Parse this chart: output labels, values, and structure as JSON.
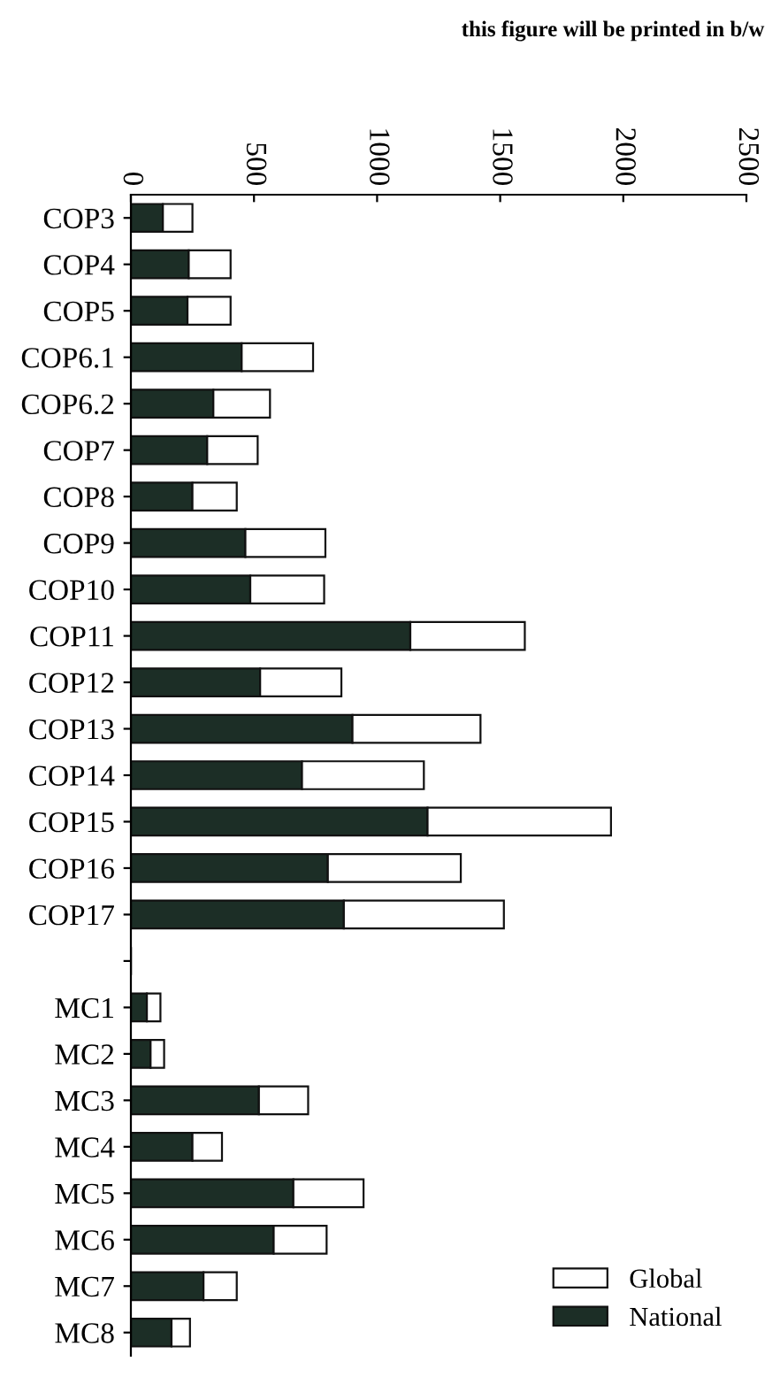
{
  "chart_data": {
    "type": "bar",
    "orientation": "horizontal",
    "stacked": true,
    "categories": [
      "COP3",
      "COP4",
      "COP5",
      "COP6.1",
      "COP6.2",
      "COP7",
      "COP8",
      "COP9",
      "COP10",
      "COP11",
      "COP12",
      "COP13",
      "COP14",
      "COP15",
      "COP16",
      "COP17",
      null,
      "MC1",
      "MC2",
      "MC3",
      "MC4",
      "MC5",
      "MC6",
      "MC7",
      "MC8"
    ],
    "series": [
      {
        "name": "National",
        "color": "#1c2e26",
        "values": [
          130,
          235,
          230,
          450,
          335,
          310,
          250,
          465,
          485,
          1135,
          525,
          900,
          695,
          1205,
          800,
          865,
          null,
          65,
          80,
          520,
          250,
          660,
          580,
          295,
          165
        ]
      },
      {
        "name": "Global",
        "color": "#ffffff",
        "values": [
          120,
          170,
          175,
          290,
          230,
          205,
          180,
          325,
          300,
          465,
          330,
          520,
          495,
          745,
          540,
          650,
          null,
          55,
          55,
          200,
          120,
          285,
          215,
          135,
          75
        ]
      }
    ],
    "xlim": [
      0,
      2500
    ],
    "xticks": [
      0,
      500,
      1000,
      1500,
      2000,
      2500
    ],
    "grid": false,
    "legend": "bottom right",
    "annotations": [
      "this figure will be printed in b/w"
    ]
  }
}
